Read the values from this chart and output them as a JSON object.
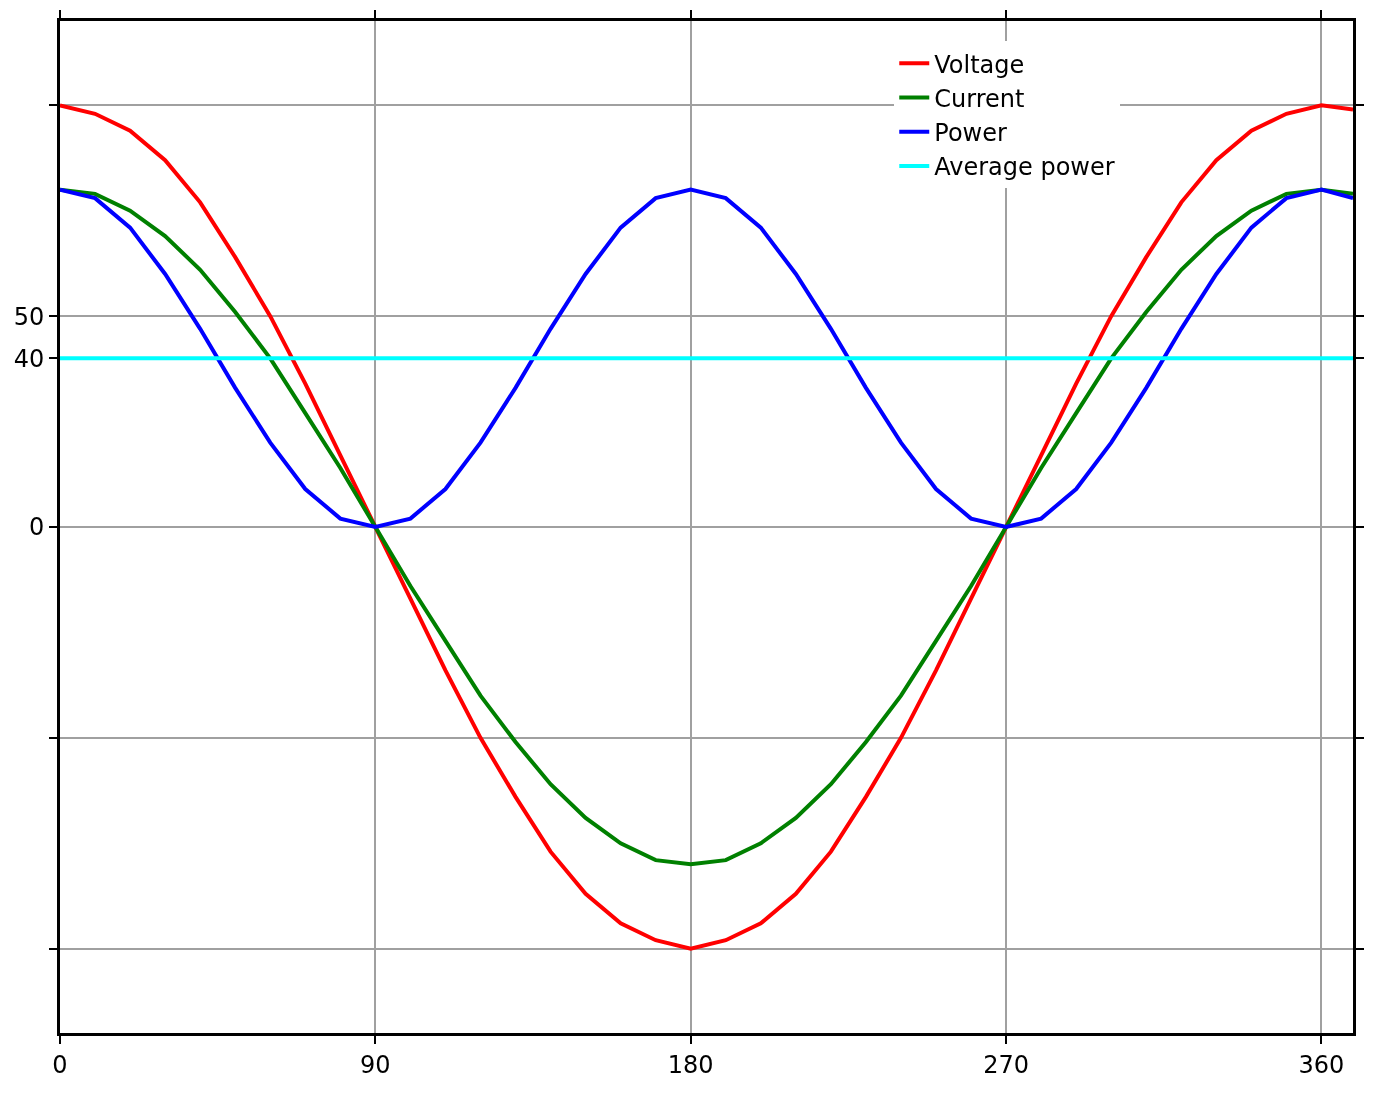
{
  "chart_data": {
    "type": "line",
    "x": [
      0,
      10,
      20,
      30,
      40,
      50,
      60,
      70,
      80,
      90,
      100,
      110,
      120,
      130,
      140,
      150,
      160,
      170,
      180,
      190,
      200,
      210,
      220,
      230,
      240,
      250,
      260,
      270,
      280,
      290,
      300,
      310,
      320,
      330,
      340,
      350,
      360,
      369
    ],
    "series": [
      {
        "name": "Voltage",
        "color": "#ff0000",
        "values": [
          100,
          98,
          94,
          87,
          77,
          64,
          50,
          34,
          17,
          0,
          -17,
          -34,
          -50,
          -64,
          -77,
          -87,
          -94,
          -98,
          -100,
          -98,
          -94,
          -87,
          -77,
          -64,
          -50,
          -34,
          -17,
          0,
          17,
          34,
          50,
          64,
          77,
          87,
          94,
          98,
          100,
          99
        ]
      },
      {
        "name": "Current",
        "color": "#008000",
        "values": [
          80,
          79,
          75,
          69,
          61,
          51,
          40,
          27,
          14,
          0,
          -14,
          -27,
          -40,
          -51,
          -61,
          -69,
          -75,
          -79,
          -80,
          -79,
          -75,
          -69,
          -61,
          -51,
          -40,
          -27,
          -14,
          0,
          14,
          27,
          40,
          51,
          61,
          69,
          75,
          79,
          80,
          79
        ]
      },
      {
        "name": "Power",
        "color": "#0000ff",
        "values": [
          80,
          78,
          71,
          60,
          47,
          33,
          20,
          9,
          2,
          0,
          2,
          9,
          20,
          33,
          47,
          60,
          71,
          78,
          80,
          78,
          71,
          60,
          47,
          33,
          20,
          9,
          2,
          0,
          2,
          9,
          20,
          33,
          47,
          60,
          71,
          78,
          80,
          78
        ]
      },
      {
        "name": "Average power",
        "color": "#00ffff",
        "x": [
          0,
          369
        ],
        "values": [
          40,
          40
        ]
      }
    ],
    "xlim": [
      0,
      369
    ],
    "xticks": [
      0,
      90,
      180,
      270,
      360
    ],
    "ylim": [
      -120,
      120
    ],
    "yticks": [
      {
        "value": -100,
        "label": null
      },
      {
        "value": -50,
        "label": null
      },
      0,
      40,
      50,
      {
        "value": 100,
        "label": null
      }
    ],
    "grid": true,
    "legend": "top right",
    "marker": "none",
    "line_style": "solid"
  }
}
